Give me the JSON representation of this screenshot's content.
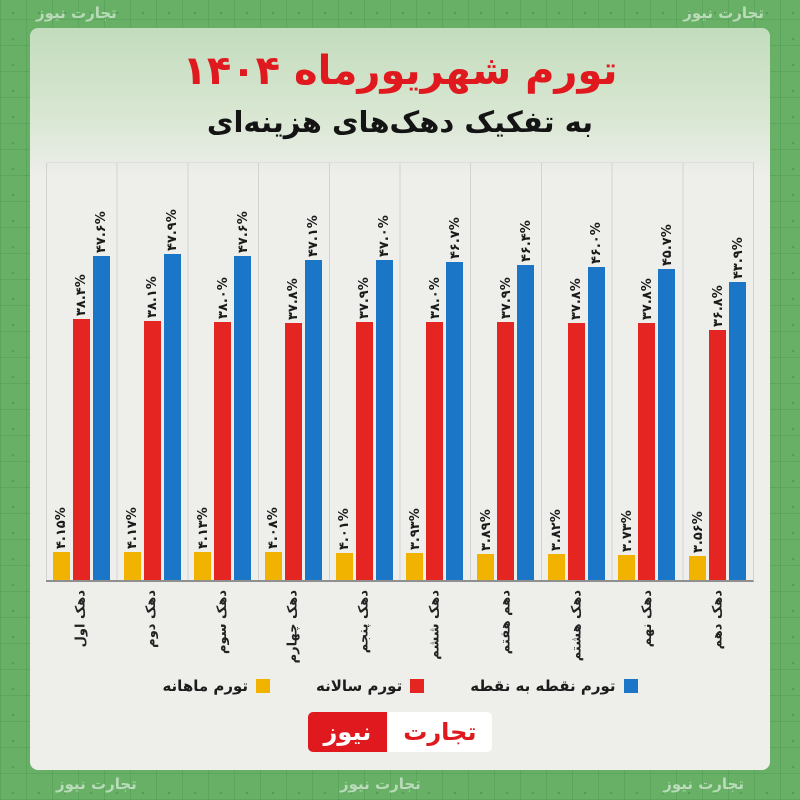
{
  "page": {
    "title_line1": "تورم شهریورماه ۱۴۰۴",
    "title_line2": "به تفکیک دهک‌های هزینه‌ای"
  },
  "watermark": "تجارت نیوز",
  "logo": {
    "news": "نیوز",
    "tejarat": "تجارت"
  },
  "colors": {
    "background_green": "#67b065",
    "panel": "#eeeeeb",
    "title_red": "#e0191f",
    "monthly_yellow": "#f2b200",
    "annual_red": "#e52521",
    "point_blue": "#1b76c8"
  },
  "chart_data": {
    "type": "bar",
    "title": "تورم شهریورماه ۱۴۰۴ به تفکیک دهک‌های هزینه‌ای",
    "categories": [
      "دهک اول",
      "دهک دوم",
      "دهک سوم",
      "دهک چهارم",
      "دهک پنجم",
      "دهک ششم",
      "دهم هفتم",
      "دهک هشتم",
      "دهک نهم",
      "دهک دهم"
    ],
    "series": [
      {
        "key": "monthly",
        "name": "تورم ماهانه",
        "color": "#f2b200",
        "values": [
          4.15,
          4.17,
          4.13,
          4.08,
          4.01,
          3.93,
          3.89,
          3.82,
          3.73,
          3.56
        ],
        "labels": [
          "۴.۱۵%",
          "۴.۱۷%",
          "۴.۱۳%",
          "۴.۰۸%",
          "۴.۰۱%",
          "۳.۹۳%",
          "۳.۸۹%",
          "۳.۸۲%",
          "۳.۷۳%",
          "۳.۵۶%"
        ]
      },
      {
        "key": "annual",
        "name": "تورم سالانه",
        "color": "#e52521",
        "values": [
          38.4,
          38.1,
          38.0,
          37.8,
          37.9,
          38.0,
          37.9,
          37.8,
          37.8,
          36.8
        ],
        "labels": [
          "۳۸.۴%",
          "۳۸.۱%",
          "۳۸.۰%",
          "۳۷.۸%",
          "۳۷.۹%",
          "۳۸.۰%",
          "۳۷.۹%",
          "۳۷.۸%",
          "۳۷.۸%",
          "۳۶.۸%"
        ]
      },
      {
        "key": "point",
        "name": "تورم نقطه به نقطه",
        "color": "#1b76c8",
        "values": [
          47.6,
          47.9,
          47.6,
          47.1,
          47.0,
          46.7,
          46.4,
          46.0,
          45.7,
          43.9
        ],
        "labels": [
          "۴۷.۶%",
          "۴۷.۹%",
          "۴۷.۶%",
          "۴۷.۱%",
          "۴۷.۰%",
          "۴۶.۷%",
          "۴۶.۴%",
          "۴۶.۰%",
          "۴۵.۷%",
          "۴۳.۹%"
        ]
      }
    ],
    "ylim": [
      0,
      50
    ],
    "legend_position": "bottom",
    "grid": "vertical"
  }
}
